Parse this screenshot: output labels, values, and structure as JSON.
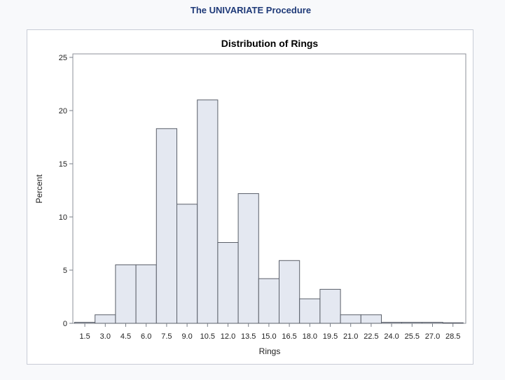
{
  "page": {
    "heading": "The UNIVARIATE Procedure"
  },
  "colors": {
    "heading": "#1f3a78",
    "bar_fill": "#e4e8f1",
    "bar_stroke": "#5a5f69",
    "axis": "#7a7f88"
  },
  "chart_data": {
    "type": "bar",
    "title": "Distribution of Rings",
    "xlabel": "Rings",
    "ylabel": "Percent",
    "ylim": [
      0,
      25
    ],
    "yticks": [
      0,
      5,
      10,
      15,
      20,
      25
    ],
    "grid": false,
    "categories": [
      "1.5",
      "3.0",
      "4.5",
      "6.0",
      "7.5",
      "9.0",
      "10.5",
      "12.0",
      "13.5",
      "15.0",
      "16.5",
      "18.0",
      "19.5",
      "21.0",
      "22.5",
      "24.0",
      "25.5",
      "27.0",
      "28.5"
    ],
    "values": [
      0.1,
      0.8,
      5.5,
      5.5,
      18.3,
      11.2,
      21.0,
      7.6,
      12.2,
      4.2,
      5.9,
      2.3,
      3.2,
      0.8,
      0.8,
      0.1,
      0.1,
      0.1,
      0.05
    ]
  }
}
